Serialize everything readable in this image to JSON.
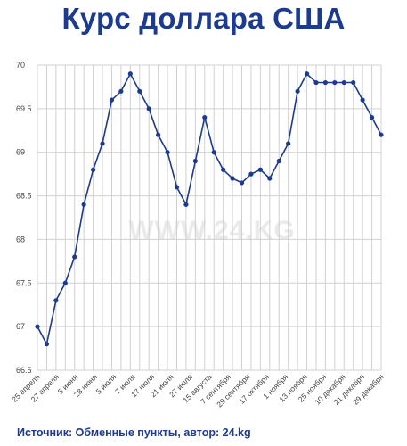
{
  "title": "Курс доллара США",
  "source": "Источник: Обменные пункты, автор: 24.kg",
  "watermark": "WWW.24.KG",
  "colors": {
    "line": "#1c3a8f",
    "title": "#1c3a8f",
    "grid": "#d0d0d0"
  },
  "chart_data": {
    "type": "line",
    "title": "Курс доллара США",
    "xlabel": "",
    "ylabel": "",
    "ylim": [
      66.5,
      70
    ],
    "yticks": [
      66.5,
      67,
      67.5,
      68,
      68.5,
      69,
      69.5,
      70
    ],
    "ytick_labels": [
      "66.5",
      "67",
      "67.5",
      "68",
      "68.5",
      "69",
      "69.5",
      "70"
    ],
    "grid": "vertical-and-horizontal",
    "xtick_labels": [
      "25 апреля",
      "27 апреля",
      "5 июня",
      "28 июня",
      "5 июля",
      "7 июля",
      "17 июля",
      "21 июля",
      "27 июля",
      "15 августа",
      "7 сентября",
      "29 сентября",
      "17 октября",
      "1 ноября",
      "13 ноября",
      "25 ноября",
      "10 декабря",
      "21 декабря",
      "29 декабря"
    ],
    "values": [
      67.0,
      66.8,
      67.3,
      67.5,
      67.8,
      68.4,
      68.8,
      69.1,
      69.6,
      69.7,
      69.9,
      69.7,
      69.5,
      69.2,
      69.0,
      68.6,
      68.4,
      68.9,
      69.4,
      69.0,
      68.8,
      68.7,
      68.65,
      68.75,
      68.8,
      68.7,
      68.9,
      69.1,
      69.7,
      69.9,
      69.8,
      69.8,
      69.8,
      69.8,
      69.8,
      69.6,
      69.4,
      69.2
    ]
  }
}
